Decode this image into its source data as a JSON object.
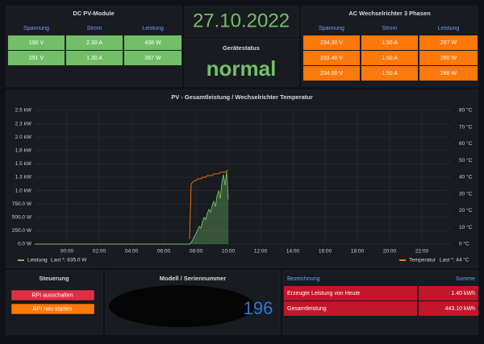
{
  "dc_panel": {
    "title": "DC PV-Module",
    "columns": [
      "Spannung",
      "Strom",
      "Leistung"
    ],
    "rows": [
      [
        "190 V",
        "2.30 A",
        "438 W"
      ],
      [
        "291 V",
        "1.30 A",
        "397 W"
      ]
    ]
  },
  "date": "27.10.2022",
  "status": {
    "title": "Gerätestatus",
    "value": "normal"
  },
  "ac_panel": {
    "title": "AC Wechselrichter 3 Phasen",
    "columns": [
      "Spannung",
      "Strom",
      "Leistung"
    ],
    "rows": [
      [
        "234.30 V",
        "1.50 A",
        "287 W"
      ],
      [
        "233.40 V",
        "1.50 A",
        "280 W"
      ],
      [
        "234.00 V",
        "1.50 A",
        "288 W"
      ]
    ]
  },
  "chart_data": {
    "type": "line",
    "title": "PV - Gesamtleistung / Wechselrichter Temperatur",
    "x": [
      -2,
      0,
      2,
      4,
      6,
      7.5,
      7.6,
      7.7,
      7.8,
      7.9,
      8.0,
      8.1,
      8.2,
      8.3,
      8.4,
      8.5,
      8.6,
      8.7,
      8.8,
      8.9,
      9.0,
      9.1,
      9.2,
      9.3,
      9.4,
      9.5,
      9.6,
      9.7,
      9.8,
      9.9,
      10.0
    ],
    "series": [
      {
        "name": "Leistung",
        "color": "#73bf69",
        "fill": true,
        "last_label": "Last *: 835.0 W",
        "values": [
          0,
          0,
          0,
          0,
          0,
          0,
          0,
          30,
          80,
          150,
          200,
          260,
          330,
          300,
          420,
          500,
          460,
          580,
          650,
          600,
          720,
          800,
          700,
          900,
          1000,
          850,
          1150,
          1300,
          1100,
          1350,
          835
        ]
      },
      {
        "name": "Temperatur",
        "color": "#ff780a",
        "axis": "y2",
        "last_label": "Last *: 44 °C",
        "values": [
          null,
          null,
          null,
          null,
          null,
          null,
          3,
          36,
          37,
          38,
          38,
          39,
          39,
          39,
          40,
          40,
          40,
          41,
          41,
          41,
          41,
          42,
          42,
          42,
          42,
          43,
          43,
          43,
          43,
          44,
          44
        ]
      }
    ],
    "xlim": [
      -2,
      23.6
    ],
    "xticks": [
      {
        "value": 0,
        "label": "00:00"
      },
      {
        "value": 2,
        "label": "02:00"
      },
      {
        "value": 4,
        "label": "04:00"
      },
      {
        "value": 6,
        "label": "06:00"
      },
      {
        "value": 8,
        "label": "08:00"
      },
      {
        "value": 10,
        "label": "10:00"
      },
      {
        "value": 12,
        "label": "12:00"
      },
      {
        "value": 14,
        "label": "14:00"
      },
      {
        "value": 16,
        "label": "16:00"
      },
      {
        "value": 18,
        "label": "18:00"
      },
      {
        "value": 20,
        "label": "20:00"
      },
      {
        "value": 22,
        "label": "22:00"
      }
    ],
    "ylim": [
      0,
      2500
    ],
    "yticks": [
      {
        "value": 0,
        "label": "0.0 W"
      },
      {
        "value": 250,
        "label": "250.0 W"
      },
      {
        "value": 500,
        "label": "500.0 W"
      },
      {
        "value": 750,
        "label": "750.0 W"
      },
      {
        "value": 1000,
        "label": "1.0 kW"
      },
      {
        "value": 1250,
        "label": "1.3 kW"
      },
      {
        "value": 1500,
        "label": "1.5 kW"
      },
      {
        "value": 1750,
        "label": "1.8 kW"
      },
      {
        "value": 2000,
        "label": "2.0 kW"
      },
      {
        "value": 2250,
        "label": "2.3 kW"
      },
      {
        "value": 2500,
        "label": "2.5 kW"
      }
    ],
    "y2lim": [
      0,
      80
    ],
    "y2ticks": [
      {
        "value": 0,
        "label": "0 °C"
      },
      {
        "value": 10,
        "label": "10 °C"
      },
      {
        "value": 20,
        "label": "20 °C"
      },
      {
        "value": 30,
        "label": "30 °C"
      },
      {
        "value": 40,
        "label": "40 °C"
      },
      {
        "value": 50,
        "label": "50 °C"
      },
      {
        "value": 60,
        "label": "60 °C"
      },
      {
        "value": 70,
        "label": "70 °C"
      },
      {
        "value": 80,
        "label": "80 °C"
      }
    ],
    "grid": true
  },
  "control": {
    "title": "Steuerung",
    "buttons": [
      "RPI ausschalten",
      "RPI neu starten"
    ]
  },
  "model": {
    "title": "Modell / Seriennummer",
    "value": "196"
  },
  "energy": {
    "columns": [
      "Bezeichnung",
      "Summe"
    ],
    "rows": [
      [
        "Erzeugte Leistung von Heute",
        "1.40 kWh"
      ],
      [
        "Gesamtleistung",
        "443.10 kWh"
      ]
    ]
  }
}
